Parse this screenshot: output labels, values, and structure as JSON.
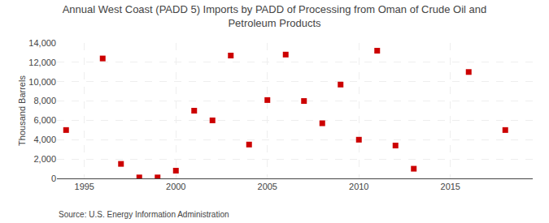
{
  "chart_data": {
    "type": "scatter",
    "title": "Annual West Coast (PADD 5) Imports by PADD of Processing from Oman of Crude Oil and\nPetroleum Products",
    "ylabel": "Thousand Barrels",
    "annotations": [
      "Source: U.S. Energy Information Administration"
    ],
    "x": [
      1994,
      1996,
      1997,
      1998,
      1999,
      2000,
      2001,
      2002,
      2003,
      2004,
      2005,
      2006,
      2007,
      2008,
      2009,
      2010,
      2011,
      2012,
      2013,
      2016,
      2018
    ],
    "values": [
      5000,
      12400,
      1500,
      100,
      100,
      800,
      7000,
      6000,
      12700,
      3500,
      8100,
      12800,
      8000,
      5700,
      9700,
      4000,
      13200,
      3400,
      1000,
      11000,
      5000
    ],
    "color": "#cc0000",
    "marker": "square",
    "xlim": [
      1993.5,
      2019.5
    ],
    "xticks": [
      1995,
      2000,
      2005,
      2010,
      2015
    ],
    "ylim": [
      0,
      14000
    ],
    "yticks": [
      0,
      {
        "value": 2000,
        "label": "2,000"
      },
      {
        "value": 4000,
        "label": "4,000"
      },
      {
        "value": 6000,
        "label": "6,000"
      },
      {
        "value": 8000,
        "label": "8,000"
      },
      {
        "value": 10000,
        "label": "10,000"
      },
      {
        "value": 12000,
        "label": "12,000"
      },
      {
        "value": 14000,
        "label": "14,000"
      }
    ],
    "grid": true
  }
}
